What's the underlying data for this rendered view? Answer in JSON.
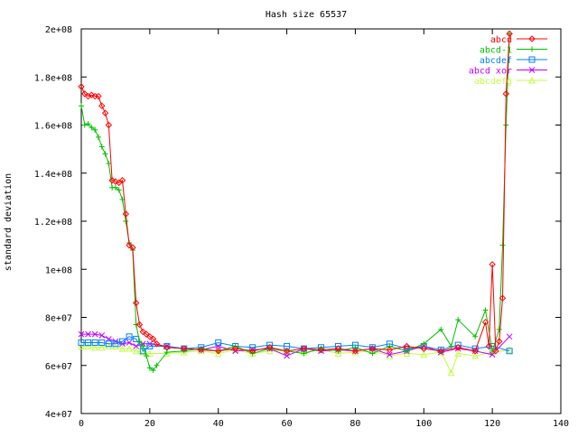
{
  "chart_data": {
    "type": "line",
    "title": "Hash size 65537",
    "xlabel": "",
    "ylabel": "standard deviation",
    "xlim": [
      0,
      140
    ],
    "ylim": [
      40000000,
      200000000
    ],
    "x_ticks": [
      0,
      20,
      40,
      60,
      80,
      100,
      120,
      140
    ],
    "x_tick_labels": [
      "0",
      "20",
      "40",
      "60",
      "80",
      "100",
      "120",
      "140"
    ],
    "y_ticks": [
      40000000,
      60000000,
      80000000,
      100000000,
      120000000,
      140000000,
      160000000,
      180000000,
      200000000
    ],
    "y_tick_labels": [
      "4e+07",
      "6e+07",
      "8e+07",
      "1e+08",
      "1.2e+08",
      "1.4e+08",
      "1.6e+08",
      "1.8e+08",
      "2e+08"
    ],
    "grid": false,
    "legend_position": "top-right",
    "series": [
      {
        "name": "abcd",
        "color": "#ff0000",
        "marker": "diamond",
        "x": [
          0,
          1,
          2,
          3,
          4,
          5,
          6,
          7,
          8,
          9,
          10,
          11,
          12,
          13,
          14,
          15,
          16,
          17,
          18,
          19,
          20,
          21,
          22,
          25,
          30,
          35,
          40,
          45,
          50,
          55,
          60,
          65,
          70,
          75,
          80,
          85,
          90,
          95,
          100,
          105,
          110,
          115,
          118,
          119,
          120,
          121,
          122,
          123,
          124,
          125
        ],
        "y": [
          176000000,
          173000000,
          172000000,
          172500000,
          172000000,
          172000000,
          168000000,
          165000000,
          160000000,
          137000000,
          136500000,
          136000000,
          137000000,
          123000000,
          110000000,
          109000000,
          86000000,
          77000000,
          74000000,
          73000000,
          72000000,
          71000000,
          69000000,
          67500000,
          67000000,
          66500000,
          66000000,
          67000000,
          66000000,
          67500000,
          66000000,
          67000000,
          66500000,
          67000000,
          66000000,
          67000000,
          66500000,
          68000000,
          67000000,
          66000000,
          67500000,
          66000000,
          78000000,
          68000000,
          102000000,
          66000000,
          70000000,
          88000000,
          173000000,
          198000000
        ]
      },
      {
        "name": "abcd-1",
        "color": "#00c000",
        "marker": "plus",
        "x": [
          0,
          1,
          2,
          3,
          4,
          5,
          6,
          7,
          8,
          9,
          10,
          11,
          12,
          13,
          14,
          15,
          16,
          17,
          18,
          19,
          20,
          21,
          22,
          25,
          30,
          35,
          40,
          45,
          50,
          55,
          60,
          65,
          70,
          75,
          80,
          85,
          90,
          95,
          100,
          105,
          108,
          110,
          115,
          118,
          120,
          122,
          123,
          124,
          125
        ],
        "y": [
          168000000,
          160000000,
          160500000,
          159000000,
          158000000,
          155000000,
          151000000,
          148000000,
          144000000,
          134000000,
          134000000,
          133000000,
          129000000,
          120000000,
          111000000,
          108000000,
          77000000,
          70000000,
          68000000,
          64000000,
          59000000,
          58000000,
          60000000,
          65500000,
          66000000,
          67000000,
          66000000,
          68000000,
          65000000,
          67000000,
          66000000,
          65000000,
          67000000,
          66000000,
          67500000,
          65000000,
          68000000,
          66000000,
          69000000,
          75000000,
          68000000,
          79000000,
          72000000,
          83000000,
          66000000,
          75000000,
          110000000,
          160000000,
          198000000
        ]
      },
      {
        "name": "abcdef",
        "color": "#0080ff",
        "marker": "square",
        "x": [
          0,
          2,
          4,
          6,
          8,
          10,
          12,
          14,
          16,
          18,
          20,
          25,
          30,
          35,
          40,
          45,
          50,
          55,
          60,
          65,
          70,
          75,
          80,
          85,
          90,
          95,
          100,
          105,
          110,
          115,
          120,
          125
        ],
        "y": [
          69500000,
          69500000,
          69500000,
          69500000,
          69000000,
          69000000,
          70000000,
          72000000,
          71000000,
          66000000,
          68000000,
          68000000,
          67000000,
          67500000,
          69500000,
          68000000,
          67500000,
          68500000,
          68000000,
          67000000,
          67500000,
          68000000,
          68500000,
          67500000,
          69000000,
          67000000,
          68000000,
          66500000,
          68500000,
          67000000,
          68000000,
          66000000
        ]
      },
      {
        "name": "abcd xor",
        "color": "#c000ff",
        "marker": "cross",
        "x": [
          0,
          2,
          4,
          6,
          8,
          10,
          12,
          14,
          16,
          18,
          20,
          25,
          30,
          35,
          40,
          45,
          50,
          55,
          60,
          65,
          70,
          75,
          80,
          85,
          90,
          95,
          100,
          105,
          110,
          115,
          120,
          125
        ],
        "y": [
          73000000,
          73000000,
          73000000,
          72500000,
          71000000,
          70000000,
          69000000,
          69500000,
          68000000,
          69000000,
          69000000,
          68000000,
          67000000,
          66500000,
          68000000,
          66000000,
          66500000,
          67000000,
          64000000,
          67000000,
          66000000,
          66500000,
          66000000,
          67000000,
          64500000,
          66000000,
          68000000,
          65500000,
          67000000,
          66000000,
          64500000,
          72000000
        ]
      },
      {
        "name": "abcdefg",
        "color": "#c0ff40",
        "marker": "triangle",
        "x": [
          0,
          2,
          4,
          6,
          8,
          10,
          12,
          14,
          16,
          18,
          20,
          25,
          30,
          35,
          40,
          45,
          50,
          55,
          60,
          65,
          70,
          75,
          80,
          85,
          90,
          95,
          100,
          105,
          108,
          110,
          115,
          120,
          125
        ],
        "y": [
          68000000,
          68000000,
          67500000,
          67500000,
          68000000,
          68000000,
          67000000,
          67000000,
          66000000,
          65500000,
          65000000,
          65000000,
          65500000,
          66000000,
          65000000,
          66500000,
          65000000,
          66000000,
          66000000,
          65500000,
          66500000,
          65000000,
          65500000,
          66000000,
          64000000,
          65000000,
          64500000,
          65500000,
          57000000,
          65000000,
          64000000,
          65500000,
          66500000
        ]
      }
    ]
  }
}
